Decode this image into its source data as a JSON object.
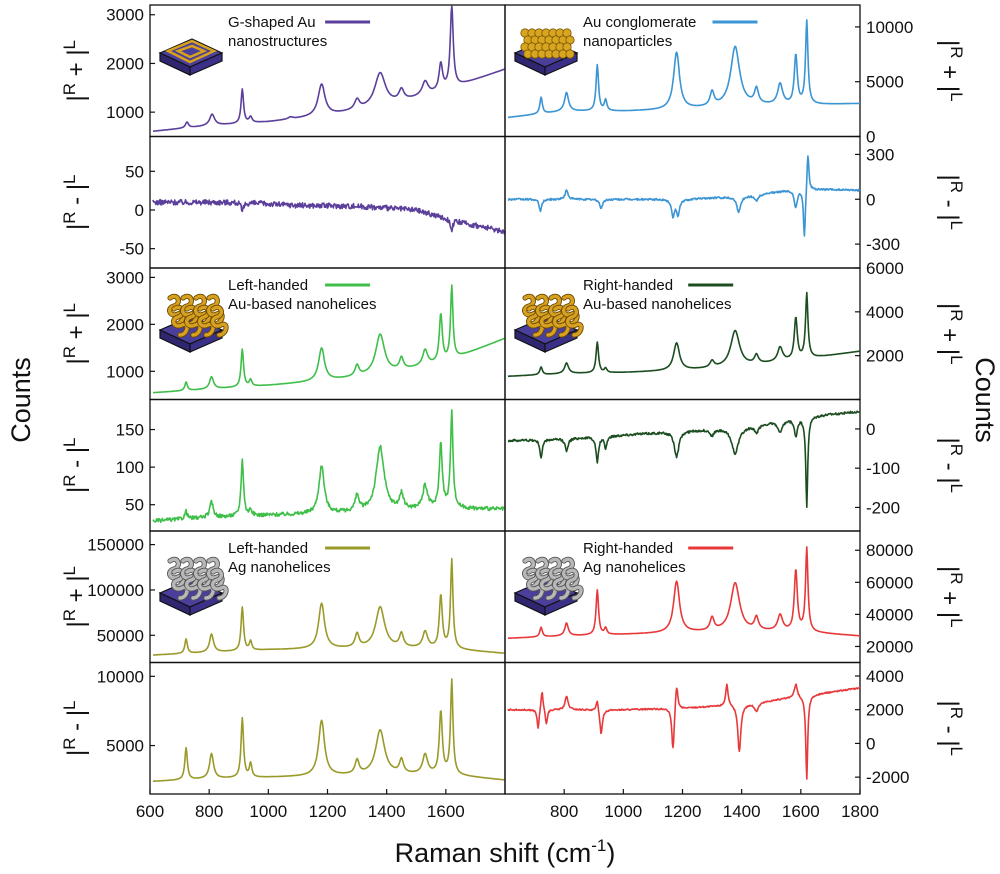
{
  "figure": {
    "x_axis_title_main": "Raman shift (cm",
    "x_axis_title_sup": "-1",
    "x_axis_title_end": ")",
    "y_axis_title_left": "Counts",
    "y_axis_title_right": "Counts"
  },
  "chart_data": [
    {
      "type": "line",
      "id": "g-shaped-au-sum",
      "legend": [
        "G-shaped Au",
        "nanostructures"
      ],
      "legend_placement": "top-left",
      "y_title": {
        "base": "|",
        "r": "R",
        "op": " + |",
        "l": "L"
      },
      "color": "#5b3f9a",
      "xlim": [
        600,
        1800
      ],
      "ylim": [
        500,
        3200
      ],
      "yticks": [
        1000,
        2000,
        3000
      ],
      "ytick_labels": [
        "1000",
        "2000",
        "3000"
      ],
      "baseline": [
        [
          600,
          600
        ],
        [
          800,
          720
        ],
        [
          1000,
          800
        ],
        [
          1200,
          930
        ],
        [
          1400,
          1120
        ],
        [
          1600,
          1450
        ],
        [
          1800,
          1880
        ]
      ],
      "peaks": [
        [
          725,
          120,
          6
        ],
        [
          810,
          230,
          10
        ],
        [
          912,
          700,
          5
        ],
        [
          940,
          120,
          6
        ],
        [
          1075,
          40,
          10
        ],
        [
          1180,
          650,
          14
        ],
        [
          1300,
          200,
          10
        ],
        [
          1378,
          700,
          22
        ],
        [
          1450,
          230,
          10
        ],
        [
          1530,
          280,
          12
        ],
        [
          1583,
          550,
          7
        ],
        [
          1620,
          1700,
          6
        ]
      ]
    },
    {
      "type": "line",
      "id": "au-conglomerate-sum",
      "legend": [
        "Au conglomerate",
        "nanoparticles"
      ],
      "legend_placement": "top-left",
      "y_title": {
        "base": "|",
        "r": "R",
        "op": " + |",
        "l": "L"
      },
      "color": "#3b94d4",
      "xlim": [
        600,
        1800
      ],
      "ylim": [
        0,
        12000
      ],
      "yticks": [
        0,
        5000,
        10000
      ],
      "ytick_labels": [
        "0",
        "5000",
        "10000"
      ],
      "baseline": [
        [
          600,
          1700
        ],
        [
          800,
          2300
        ],
        [
          1000,
          2300
        ],
        [
          1200,
          2450
        ],
        [
          1400,
          2800
        ],
        [
          1600,
          2850
        ],
        [
          1800,
          3000
        ]
      ],
      "peaks": [
        [
          722,
          1500,
          5
        ],
        [
          808,
          1700,
          8
        ],
        [
          912,
          4200,
          5
        ],
        [
          940,
          1000,
          5
        ],
        [
          1180,
          5200,
          12
        ],
        [
          1300,
          1300,
          8
        ],
        [
          1378,
          5400,
          18
        ],
        [
          1450,
          1400,
          8
        ],
        [
          1530,
          1900,
          10
        ],
        [
          1583,
          4500,
          6
        ],
        [
          1620,
          7600,
          5
        ]
      ]
    },
    {
      "type": "line",
      "id": "g-shaped-au-diff",
      "y_title": {
        "base": "|",
        "r": "R",
        "op": " - |",
        "l": "L"
      },
      "color": "#5b3f9a",
      "xlim": [
        600,
        1800
      ],
      "ylim": [
        -75,
        95
      ],
      "yticks": [
        -50,
        0,
        50
      ],
      "ytick_labels": [
        "-50",
        "0",
        "50"
      ],
      "noise": 3.5,
      "baseline": [
        [
          600,
          10
        ],
        [
          900,
          10
        ],
        [
          1100,
          6
        ],
        [
          1300,
          5
        ],
        [
          1500,
          0
        ],
        [
          1650,
          -16
        ],
        [
          1800,
          -28
        ]
      ],
      "peaks": [
        [
          912,
          -12,
          5
        ],
        [
          1620,
          -12,
          5
        ]
      ]
    },
    {
      "type": "line",
      "id": "au-conglomerate-diff",
      "y_title": {
        "base": "|",
        "r": "R",
        "op": " - |",
        "l": "L"
      },
      "color": "#3b94d4",
      "xlim": [
        600,
        1800
      ],
      "ylim": [
        -460,
        420
      ],
      "yticks": [
        -300,
        0,
        300
      ],
      "ytick_labels": [
        "-300",
        "0",
        "300"
      ],
      "noise": 6,
      "baseline": [
        [
          600,
          0
        ],
        [
          800,
          0
        ],
        [
          1000,
          0
        ],
        [
          1200,
          0
        ],
        [
          1400,
          20
        ],
        [
          1600,
          70
        ],
        [
          1800,
          60
        ]
      ],
      "peaks": [
        [
          720,
          -80,
          5
        ],
        [
          808,
          60,
          6
        ],
        [
          925,
          -60,
          6
        ],
        [
          1168,
          -110,
          6
        ],
        [
          1185,
          -100,
          6
        ],
        [
          1390,
          -100,
          8
        ],
        [
          1450,
          -40,
          8
        ],
        [
          1583,
          -120,
          6
        ],
        [
          1612,
          -330,
          4
        ],
        [
          1624,
          260,
          4
        ]
      ]
    },
    {
      "type": "line",
      "id": "left-au-nanohelices-sum",
      "legend": [
        "Left-handed",
        "Au-based nanohelices"
      ],
      "legend_placement": "top-left",
      "y_title": {
        "base": "|",
        "r": "R",
        "op": " + |",
        "l": "L"
      },
      "color": "#3fbf4a",
      "xlim": [
        600,
        1800
      ],
      "ylim": [
        400,
        3200
      ],
      "yticks": [
        1000,
        2000,
        3000
      ],
      "ytick_labels": [
        "1000",
        "2000",
        "3000"
      ],
      "baseline": [
        [
          600,
          540
        ],
        [
          800,
          620
        ],
        [
          1000,
          700
        ],
        [
          1200,
          800
        ],
        [
          1400,
          950
        ],
        [
          1600,
          1200
        ],
        [
          1800,
          1700
        ]
      ],
      "peaks": [
        [
          722,
          180,
          5
        ],
        [
          808,
          260,
          8
        ],
        [
          912,
          800,
          5
        ],
        [
          940,
          140,
          5
        ],
        [
          1180,
          700,
          12
        ],
        [
          1300,
          230,
          8
        ],
        [
          1378,
          850,
          18
        ],
        [
          1450,
          250,
          8
        ],
        [
          1530,
          330,
          10
        ],
        [
          1583,
          1020,
          6
        ],
        [
          1620,
          1550,
          5
        ]
      ]
    },
    {
      "type": "line",
      "id": "right-au-nanohelices-sum",
      "legend": [
        "Right-handed",
        "Au-based nanohelices"
      ],
      "legend_placement": "top-left",
      "y_title": {
        "base": "|",
        "r": "R",
        "op": " + |",
        "l": "L"
      },
      "color": "#1c4d20",
      "xlim": [
        600,
        1800
      ],
      "ylim": [
        0,
        6000
      ],
      "yticks": [
        0,
        2000,
        4000,
        6000
      ],
      "ytick_labels": [
        "",
        "2000",
        "4000",
        "6000"
      ],
      "baseline": [
        [
          600,
          1050
        ],
        [
          800,
          1180
        ],
        [
          1000,
          1230
        ],
        [
          1200,
          1330
        ],
        [
          1400,
          1500
        ],
        [
          1600,
          1820
        ],
        [
          1800,
          2200
        ]
      ],
      "peaks": [
        [
          722,
          350,
          5
        ],
        [
          808,
          480,
          8
        ],
        [
          912,
          1400,
          5
        ],
        [
          940,
          200,
          5
        ],
        [
          1180,
          1250,
          12
        ],
        [
          1300,
          300,
          8
        ],
        [
          1378,
          1650,
          18
        ],
        [
          1450,
          400,
          8
        ],
        [
          1530,
          650,
          10
        ],
        [
          1583,
          1900,
          6
        ],
        [
          1620,
          2950,
          5
        ]
      ]
    },
    {
      "type": "line",
      "id": "left-au-nanohelices-diff",
      "y_title": {
        "base": "|",
        "r": "R",
        "op": " - |",
        "l": "L"
      },
      "color": "#3fbf4a",
      "xlim": [
        600,
        1800
      ],
      "ylim": [
        15,
        190
      ],
      "yticks": [
        50,
        100,
        150
      ],
      "ytick_labels": [
        "50",
        "100",
        "150"
      ],
      "noise": 2.5,
      "baseline": [
        [
          600,
          28
        ],
        [
          800,
          33
        ],
        [
          1000,
          36
        ],
        [
          1200,
          38
        ],
        [
          1400,
          42
        ],
        [
          1600,
          45
        ],
        [
          1800,
          44
        ]
      ],
      "peaks": [
        [
          722,
          10,
          5
        ],
        [
          808,
          20,
          7
        ],
        [
          912,
          75,
          5
        ],
        [
          940,
          8,
          5
        ],
        [
          1180,
          63,
          11
        ],
        [
          1300,
          20,
          8
        ],
        [
          1378,
          85,
          16
        ],
        [
          1450,
          20,
          8
        ],
        [
          1530,
          30,
          10
        ],
        [
          1583,
          85,
          6
        ],
        [
          1620,
          130,
          5
        ]
      ]
    },
    {
      "type": "line",
      "id": "right-au-nanohelices-diff",
      "y_title": {
        "base": "|",
        "r": "R",
        "op": " - |",
        "l": "L"
      },
      "color": "#1c4d20",
      "xlim": [
        600,
        1800
      ],
      "ylim": [
        -260,
        75
      ],
      "yticks": [
        -200,
        -100,
        0
      ],
      "ytick_labels": [
        "-200",
        "-100",
        "0"
      ],
      "noise": 3,
      "baseline": [
        [
          600,
          -30
        ],
        [
          800,
          -25
        ],
        [
          1000,
          -15
        ],
        [
          1200,
          -5
        ],
        [
          1400,
          5
        ],
        [
          1600,
          30
        ],
        [
          1800,
          45
        ]
      ],
      "peaks": [
        [
          722,
          -45,
          5
        ],
        [
          808,
          -30,
          6
        ],
        [
          912,
          -65,
          5
        ],
        [
          940,
          -30,
          5
        ],
        [
          1180,
          -65,
          9
        ],
        [
          1300,
          -15,
          8
        ],
        [
          1378,
          -65,
          14
        ],
        [
          1450,
          -20,
          8
        ],
        [
          1530,
          -30,
          9
        ],
        [
          1583,
          -45,
          6
        ],
        [
          1620,
          -230,
          4
        ]
      ]
    },
    {
      "type": "line",
      "id": "left-ag-nanohelices-sum",
      "legend": [
        "Left-handed",
        "Ag nanohelices"
      ],
      "legend_placement": "top-left",
      "y_title": {
        "base": "|",
        "r": "R",
        "op": " + |",
        "l": "L"
      },
      "color": "#9a9a2b",
      "xlim": [
        600,
        1800
      ],
      "ylim": [
        20000,
        165000
      ],
      "yticks": [
        50000,
        100000,
        150000
      ],
      "ytick_labels": [
        "50000",
        "100000",
        "150000"
      ],
      "baseline": [
        [
          600,
          28000
        ],
        [
          800,
          31000
        ],
        [
          1000,
          34000
        ],
        [
          1200,
          35000
        ],
        [
          1400,
          36000
        ],
        [
          1600,
          35000
        ],
        [
          1800,
          30000
        ]
      ],
      "peaks": [
        [
          722,
          16000,
          5
        ],
        [
          808,
          20000,
          8
        ],
        [
          912,
          48000,
          5
        ],
        [
          940,
          10000,
          5
        ],
        [
          1180,
          50000,
          12
        ],
        [
          1300,
          15000,
          8
        ],
        [
          1378,
          45000,
          18
        ],
        [
          1450,
          15000,
          8
        ],
        [
          1530,
          18000,
          10
        ],
        [
          1583,
          58000,
          6
        ],
        [
          1620,
          98000,
          5
        ]
      ]
    },
    {
      "type": "line",
      "id": "right-ag-nanohelices-sum",
      "legend": [
        "Right-handed",
        "Ag nanohelices"
      ],
      "legend_placement": "top-left",
      "y_title": {
        "base": "|",
        "r": "R",
        "op": " + |",
        "l": "L"
      },
      "color": "#e8393a",
      "xlim": [
        600,
        1800
      ],
      "ylim": [
        10000,
        92000
      ],
      "yticks": [
        20000,
        40000,
        60000,
        80000
      ],
      "ytick_labels": [
        "20000",
        "40000",
        "60000",
        "80000"
      ],
      "baseline": [
        [
          600,
          25000
        ],
        [
          800,
          26500
        ],
        [
          1000,
          27500
        ],
        [
          1200,
          28500
        ],
        [
          1400,
          29500
        ],
        [
          1600,
          29000
        ],
        [
          1800,
          26500
        ]
      ],
      "peaks": [
        [
          722,
          6000,
          5
        ],
        [
          808,
          8000,
          7
        ],
        [
          912,
          28000,
          5
        ],
        [
          940,
          4000,
          5
        ],
        [
          1180,
          32000,
          12
        ],
        [
          1300,
          8000,
          8
        ],
        [
          1378,
          30000,
          18
        ],
        [
          1450,
          8000,
          8
        ],
        [
          1530,
          10000,
          10
        ],
        [
          1583,
          38000,
          6
        ],
        [
          1620,
          52000,
          5
        ]
      ]
    },
    {
      "type": "line",
      "id": "left-ag-nanohelices-diff",
      "y_title": {
        "base": "|",
        "r": "R",
        "op": " - |",
        "l": "L"
      },
      "color": "#9a9a2b",
      "xlim": [
        600,
        1800
      ],
      "ylim": [
        1500,
        11000
      ],
      "yticks": [
        5000,
        10000
      ],
      "ytick_labels": [
        "5000",
        "10000"
      ],
      "baseline": [
        [
          600,
          2400
        ],
        [
          800,
          2600
        ],
        [
          1000,
          2700
        ],
        [
          1200,
          2800
        ],
        [
          1400,
          2900
        ],
        [
          1600,
          2900
        ],
        [
          1800,
          2500
        ]
      ],
      "peaks": [
        [
          722,
          2300,
          5
        ],
        [
          808,
          1800,
          8
        ],
        [
          912,
          4300,
          5
        ],
        [
          940,
          1000,
          5
        ],
        [
          1180,
          4000,
          12
        ],
        [
          1300,
          1000,
          8
        ],
        [
          1378,
          3200,
          18
        ],
        [
          1450,
          1000,
          8
        ],
        [
          1530,
          1400,
          10
        ],
        [
          1583,
          4500,
          6
        ],
        [
          1620,
          6800,
          5
        ]
      ]
    },
    {
      "type": "line",
      "id": "right-ag-nanohelices-diff",
      "y_title": {
        "base": "|",
        "r": "R",
        "op": " - |",
        "l": "L"
      },
      "color": "#e8393a",
      "xlim": [
        600,
        1800
      ],
      "ylim": [
        -3000,
        4800
      ],
      "yticks": [
        -2000,
        0,
        2000,
        4000
      ],
      "ytick_labels": [
        "-2000",
        "0",
        "2000",
        "4000"
      ],
      "noise": 40,
      "baseline": [
        [
          600,
          2000
        ],
        [
          800,
          2000
        ],
        [
          1000,
          2000
        ],
        [
          1200,
          2100
        ],
        [
          1400,
          2300
        ],
        [
          1600,
          2800
        ],
        [
          1800,
          3300
        ]
      ],
      "peaks": [
        [
          712,
          -1200,
          4
        ],
        [
          725,
          1200,
          4
        ],
        [
          740,
          -900,
          4
        ],
        [
          808,
          800,
          6
        ],
        [
          912,
          700,
          4
        ],
        [
          925,
          -1500,
          5
        ],
        [
          1168,
          -2600,
          5
        ],
        [
          1180,
          1600,
          5
        ],
        [
          1350,
          1300,
          5
        ],
        [
          1392,
          -2800,
          6
        ],
        [
          1450,
          -500,
          8
        ],
        [
          1583,
          800,
          6
        ],
        [
          1620,
          -5000,
          4
        ]
      ]
    }
  ]
}
